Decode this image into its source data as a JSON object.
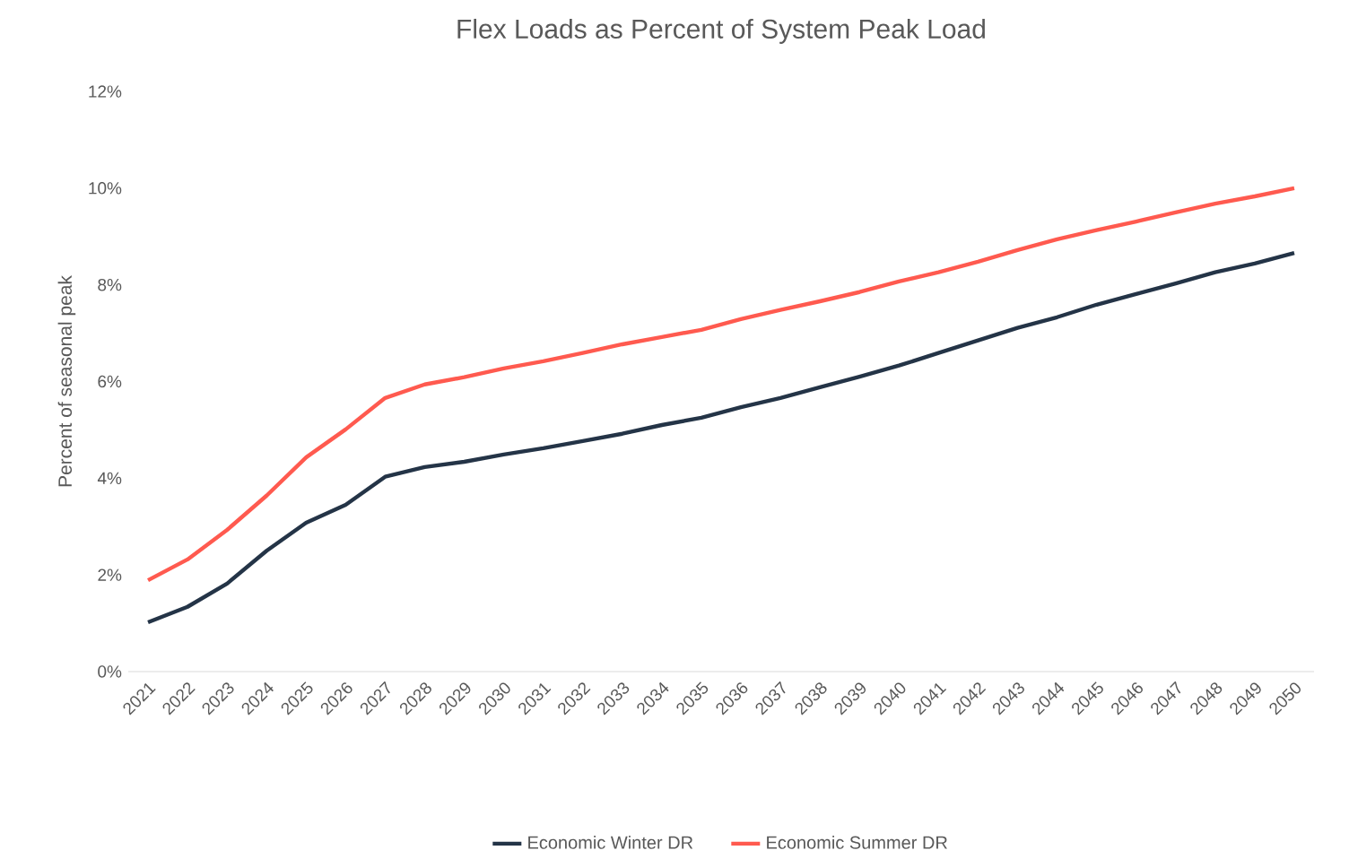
{
  "chart_data": {
    "type": "line",
    "title": "Flex Loads as Percent of System Peak Load",
    "ylabel": "Percent of seasonal peak",
    "categories": [
      "2021",
      "2022",
      "2023",
      "2024",
      "2025",
      "2026",
      "2027",
      "2028",
      "2029",
      "2030",
      "2031",
      "2032",
      "2033",
      "2034",
      "2035",
      "2036",
      "2037",
      "2038",
      "2039",
      "2040",
      "2041",
      "2042",
      "2043",
      "2044",
      "2045",
      "2046",
      "2047",
      "2048",
      "2049",
      "2050"
    ],
    "series": [
      {
        "name": "Economic Winter DR",
        "color": "#243447",
        "values": [
          1.02,
          1.34,
          1.82,
          2.5,
          3.08,
          3.45,
          4.03,
          4.23,
          4.34,
          4.49,
          4.62,
          4.77,
          4.92,
          5.1,
          5.25,
          5.47,
          5.66,
          5.88,
          6.1,
          6.33,
          6.59,
          6.85,
          7.11,
          7.33,
          7.59,
          7.81,
          8.03,
          8.26,
          8.44,
          8.66
        ]
      },
      {
        "name": "Economic Summer DR",
        "color": "#ff5a4f",
        "values": [
          1.89,
          2.32,
          2.93,
          3.64,
          4.43,
          5.01,
          5.66,
          5.94,
          6.09,
          6.27,
          6.42,
          6.59,
          6.77,
          6.92,
          7.07,
          7.29,
          7.48,
          7.66,
          7.85,
          8.07,
          8.26,
          8.48,
          8.72,
          8.94,
          9.13,
          9.31,
          9.5,
          9.68,
          9.83,
          10.0
        ]
      }
    ],
    "ylim": [
      0,
      12
    ],
    "yticks": [
      {
        "value": 0,
        "label": "0%"
      },
      {
        "value": 2,
        "label": "2%"
      },
      {
        "value": 4,
        "label": "4%"
      },
      {
        "value": 6,
        "label": "6%"
      },
      {
        "value": 8,
        "label": "8%"
      },
      {
        "value": 10,
        "label": "10%"
      },
      {
        "value": 12,
        "label": "12%"
      }
    ],
    "grid": false,
    "legend": "bottom",
    "marker": "none",
    "line_style": "solid"
  }
}
